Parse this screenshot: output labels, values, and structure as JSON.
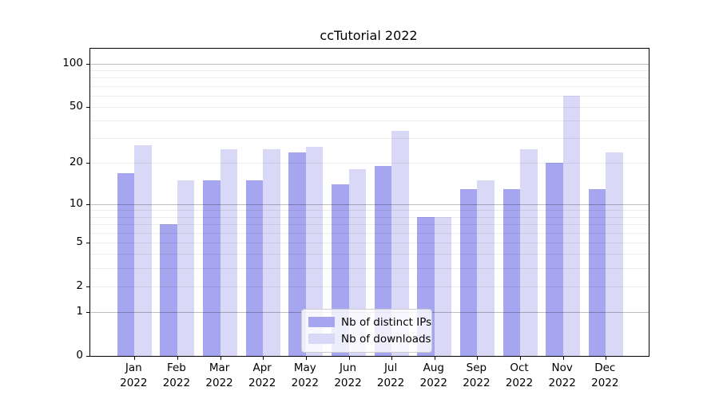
{
  "title": "ccTutorial 2022",
  "chart_data": {
    "type": "bar",
    "title": "ccTutorial 2022",
    "categories": [
      "Jan",
      "Feb",
      "Mar",
      "Apr",
      "May",
      "Jun",
      "Jul",
      "Aug",
      "Sep",
      "Oct",
      "Nov",
      "Dec"
    ],
    "category_year": "2022",
    "series": [
      {
        "name": "Nb of distinct IPs",
        "color": "#a5a5f0",
        "values": [
          17,
          7,
          15,
          15,
          24,
          14,
          19,
          8,
          13,
          13,
          20,
          13
        ]
      },
      {
        "name": "Nb of downloads",
        "color": "#d9d9f7",
        "values": [
          27,
          15,
          25,
          25,
          26,
          18,
          34,
          8,
          15,
          25,
          60,
          24
        ]
      }
    ],
    "xlabel": "",
    "ylabel": "",
    "y_scale": "log1p",
    "ylim": [
      0,
      130
    ],
    "y_ticks": [
      0,
      1,
      2,
      5,
      10,
      20,
      50,
      100
    ],
    "y_major_gridlines": [
      1,
      10,
      100
    ],
    "y_minor_gridlines": [
      2,
      3,
      4,
      5,
      6,
      7,
      8,
      9,
      20,
      30,
      40,
      50,
      60,
      70,
      80,
      90
    ],
    "grid": true,
    "legend_position": "lower center"
  },
  "colors": {
    "bar_ips": "#a5a5f0",
    "bar_downloads": "#d9d9f7",
    "major_grid": "#bdbdbd",
    "minor_grid": "#ebebeb",
    "axis_spine": "#000000",
    "background": "#ffffff",
    "legend_border": "#cccccc"
  }
}
